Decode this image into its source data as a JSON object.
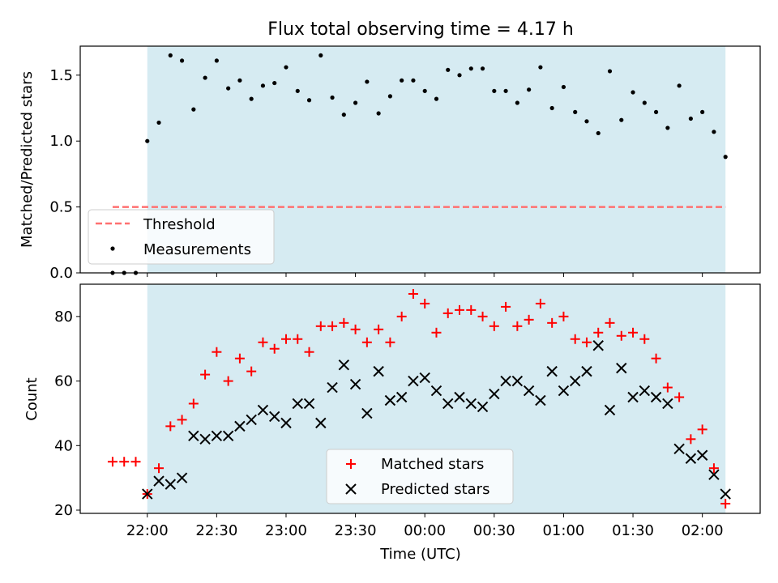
{
  "title": "Flux total observing time = 4.17 h",
  "colors": {
    "observing_span": "#add8e6",
    "threshold": "#ff7070",
    "measurements": "#000000",
    "matched": "#ff0000",
    "predicted": "#000000"
  },
  "chart_data": [
    {
      "type": "scatter",
      "ylabel": "Matched/Predicted stars",
      "ylim": [
        0.0,
        1.72
      ],
      "y_ticks": [
        0.0,
        0.5,
        1.0,
        1.5
      ],
      "y_tick_labels": [
        "0.0",
        "0.5",
        "1.0",
        "1.5"
      ],
      "observing_span": {
        "start": "22:00",
        "end": "02:10"
      },
      "legend": {
        "position": "lower-left",
        "entries": [
          {
            "label": "Threshold",
            "style": "dashed-line"
          },
          {
            "label": "Measurements",
            "style": "dot"
          }
        ]
      },
      "threshold": {
        "name": "Threshold",
        "value": 0.5,
        "x_start": "21:45",
        "x_end": "02:10"
      },
      "series": [
        {
          "name": "Measurements",
          "x": [
            "21:45",
            "21:50",
            "21:55",
            "22:00",
            "22:05",
            "22:10",
            "22:15",
            "22:20",
            "22:25",
            "22:30",
            "22:35",
            "22:40",
            "22:45",
            "22:50",
            "22:55",
            "23:00",
            "23:05",
            "23:10",
            "23:15",
            "23:20",
            "23:25",
            "23:30",
            "23:35",
            "23:40",
            "23:45",
            "23:50",
            "23:55",
            "00:00",
            "00:05",
            "00:10",
            "00:15",
            "00:20",
            "00:25",
            "00:30",
            "00:35",
            "00:40",
            "00:45",
            "00:50",
            "00:55",
            "01:00",
            "01:05",
            "01:10",
            "01:15",
            "01:20",
            "01:25",
            "01:30",
            "01:35",
            "01:40",
            "01:45",
            "01:50",
            "01:55",
            "02:00",
            "02:05",
            "02:10"
          ],
          "y": [
            0.0,
            0.0,
            0.0,
            1.0,
            1.14,
            1.65,
            1.61,
            1.24,
            1.48,
            1.61,
            1.4,
            1.46,
            1.32,
            1.42,
            1.44,
            1.56,
            1.38,
            1.31,
            1.65,
            1.33,
            1.2,
            1.29,
            1.45,
            1.21,
            1.34,
            1.46,
            1.46,
            1.38,
            1.32,
            1.54,
            1.5,
            1.55,
            1.55,
            1.38,
            1.38,
            1.29,
            1.39,
            1.56,
            1.25,
            1.41,
            1.22,
            1.15,
            1.06,
            1.53,
            1.16,
            1.37,
            1.29,
            1.22,
            1.1,
            1.42,
            1.17,
            1.22,
            1.07,
            0.88
          ]
        }
      ]
    },
    {
      "type": "scatter",
      "xlabel": "Time (UTC)",
      "ylabel": "Count",
      "ylim": [
        19,
        90
      ],
      "y_ticks": [
        20,
        40,
        60,
        80
      ],
      "y_tick_labels": [
        "20",
        "40",
        "60",
        "80"
      ],
      "x_ticks": [
        "22:00",
        "22:30",
        "23:00",
        "23:30",
        "00:00",
        "00:30",
        "01:00",
        "01:30",
        "02:00"
      ],
      "observing_span": {
        "start": "22:00",
        "end": "02:10"
      },
      "legend": {
        "position": "lower-center",
        "entries": [
          {
            "label": "Matched stars",
            "style": "plus"
          },
          {
            "label": "Predicted stars",
            "style": "cross"
          }
        ]
      },
      "series": [
        {
          "name": "Matched stars",
          "marker": "plus",
          "x": [
            "21:45",
            "21:50",
            "21:55",
            "22:00",
            "22:05",
            "22:10",
            "22:15",
            "22:20",
            "22:25",
            "22:30",
            "22:35",
            "22:40",
            "22:45",
            "22:50",
            "22:55",
            "23:00",
            "23:05",
            "23:10",
            "23:15",
            "23:20",
            "23:25",
            "23:30",
            "23:35",
            "23:40",
            "23:45",
            "23:50",
            "23:55",
            "00:00",
            "00:05",
            "00:10",
            "00:15",
            "00:20",
            "00:25",
            "00:30",
            "00:35",
            "00:40",
            "00:45",
            "00:50",
            "00:55",
            "01:00",
            "01:05",
            "01:10",
            "01:15",
            "01:20",
            "01:25",
            "01:30",
            "01:35",
            "01:40",
            "01:45",
            "01:50",
            "01:55",
            "02:00",
            "02:05",
            "02:10"
          ],
          "y": [
            35,
            35,
            35,
            25,
            33,
            46,
            48,
            53,
            62,
            69,
            60,
            67,
            63,
            72,
            70,
            73,
            73,
            69,
            77,
            77,
            78,
            76,
            72,
            76,
            72,
            80,
            87,
            84,
            75,
            81,
            82,
            82,
            80,
            77,
            83,
            77,
            79,
            84,
            78,
            80,
            73,
            72,
            75,
            78,
            74,
            75,
            73,
            67,
            58,
            55,
            42,
            45,
            33,
            22
          ]
        },
        {
          "name": "Predicted stars",
          "marker": "cross",
          "x": [
            "22:00",
            "22:05",
            "22:10",
            "22:15",
            "22:20",
            "22:25",
            "22:30",
            "22:35",
            "22:40",
            "22:45",
            "22:50",
            "22:55",
            "23:00",
            "23:05",
            "23:10",
            "23:15",
            "23:20",
            "23:25",
            "23:30",
            "23:35",
            "23:40",
            "23:45",
            "23:50",
            "23:55",
            "00:00",
            "00:05",
            "00:10",
            "00:15",
            "00:20",
            "00:25",
            "00:30",
            "00:35",
            "00:40",
            "00:45",
            "00:50",
            "00:55",
            "01:00",
            "01:05",
            "01:10",
            "01:15",
            "01:20",
            "01:25",
            "01:30",
            "01:35",
            "01:40",
            "01:45",
            "01:50",
            "01:55",
            "02:00",
            "02:05",
            "02:10"
          ],
          "y": [
            25,
            29,
            28,
            30,
            43,
            42,
            43,
            43,
            46,
            48,
            51,
            49,
            47,
            53,
            53,
            47,
            58,
            65,
            59,
            50,
            63,
            54,
            55,
            60,
            61,
            57,
            53,
            55,
            53,
            52,
            56,
            60,
            60,
            57,
            54,
            63,
            57,
            60,
            63,
            71,
            51,
            64,
            55,
            57,
            55,
            53,
            39,
            36,
            37,
            31,
            25
          ]
        }
      ]
    }
  ]
}
